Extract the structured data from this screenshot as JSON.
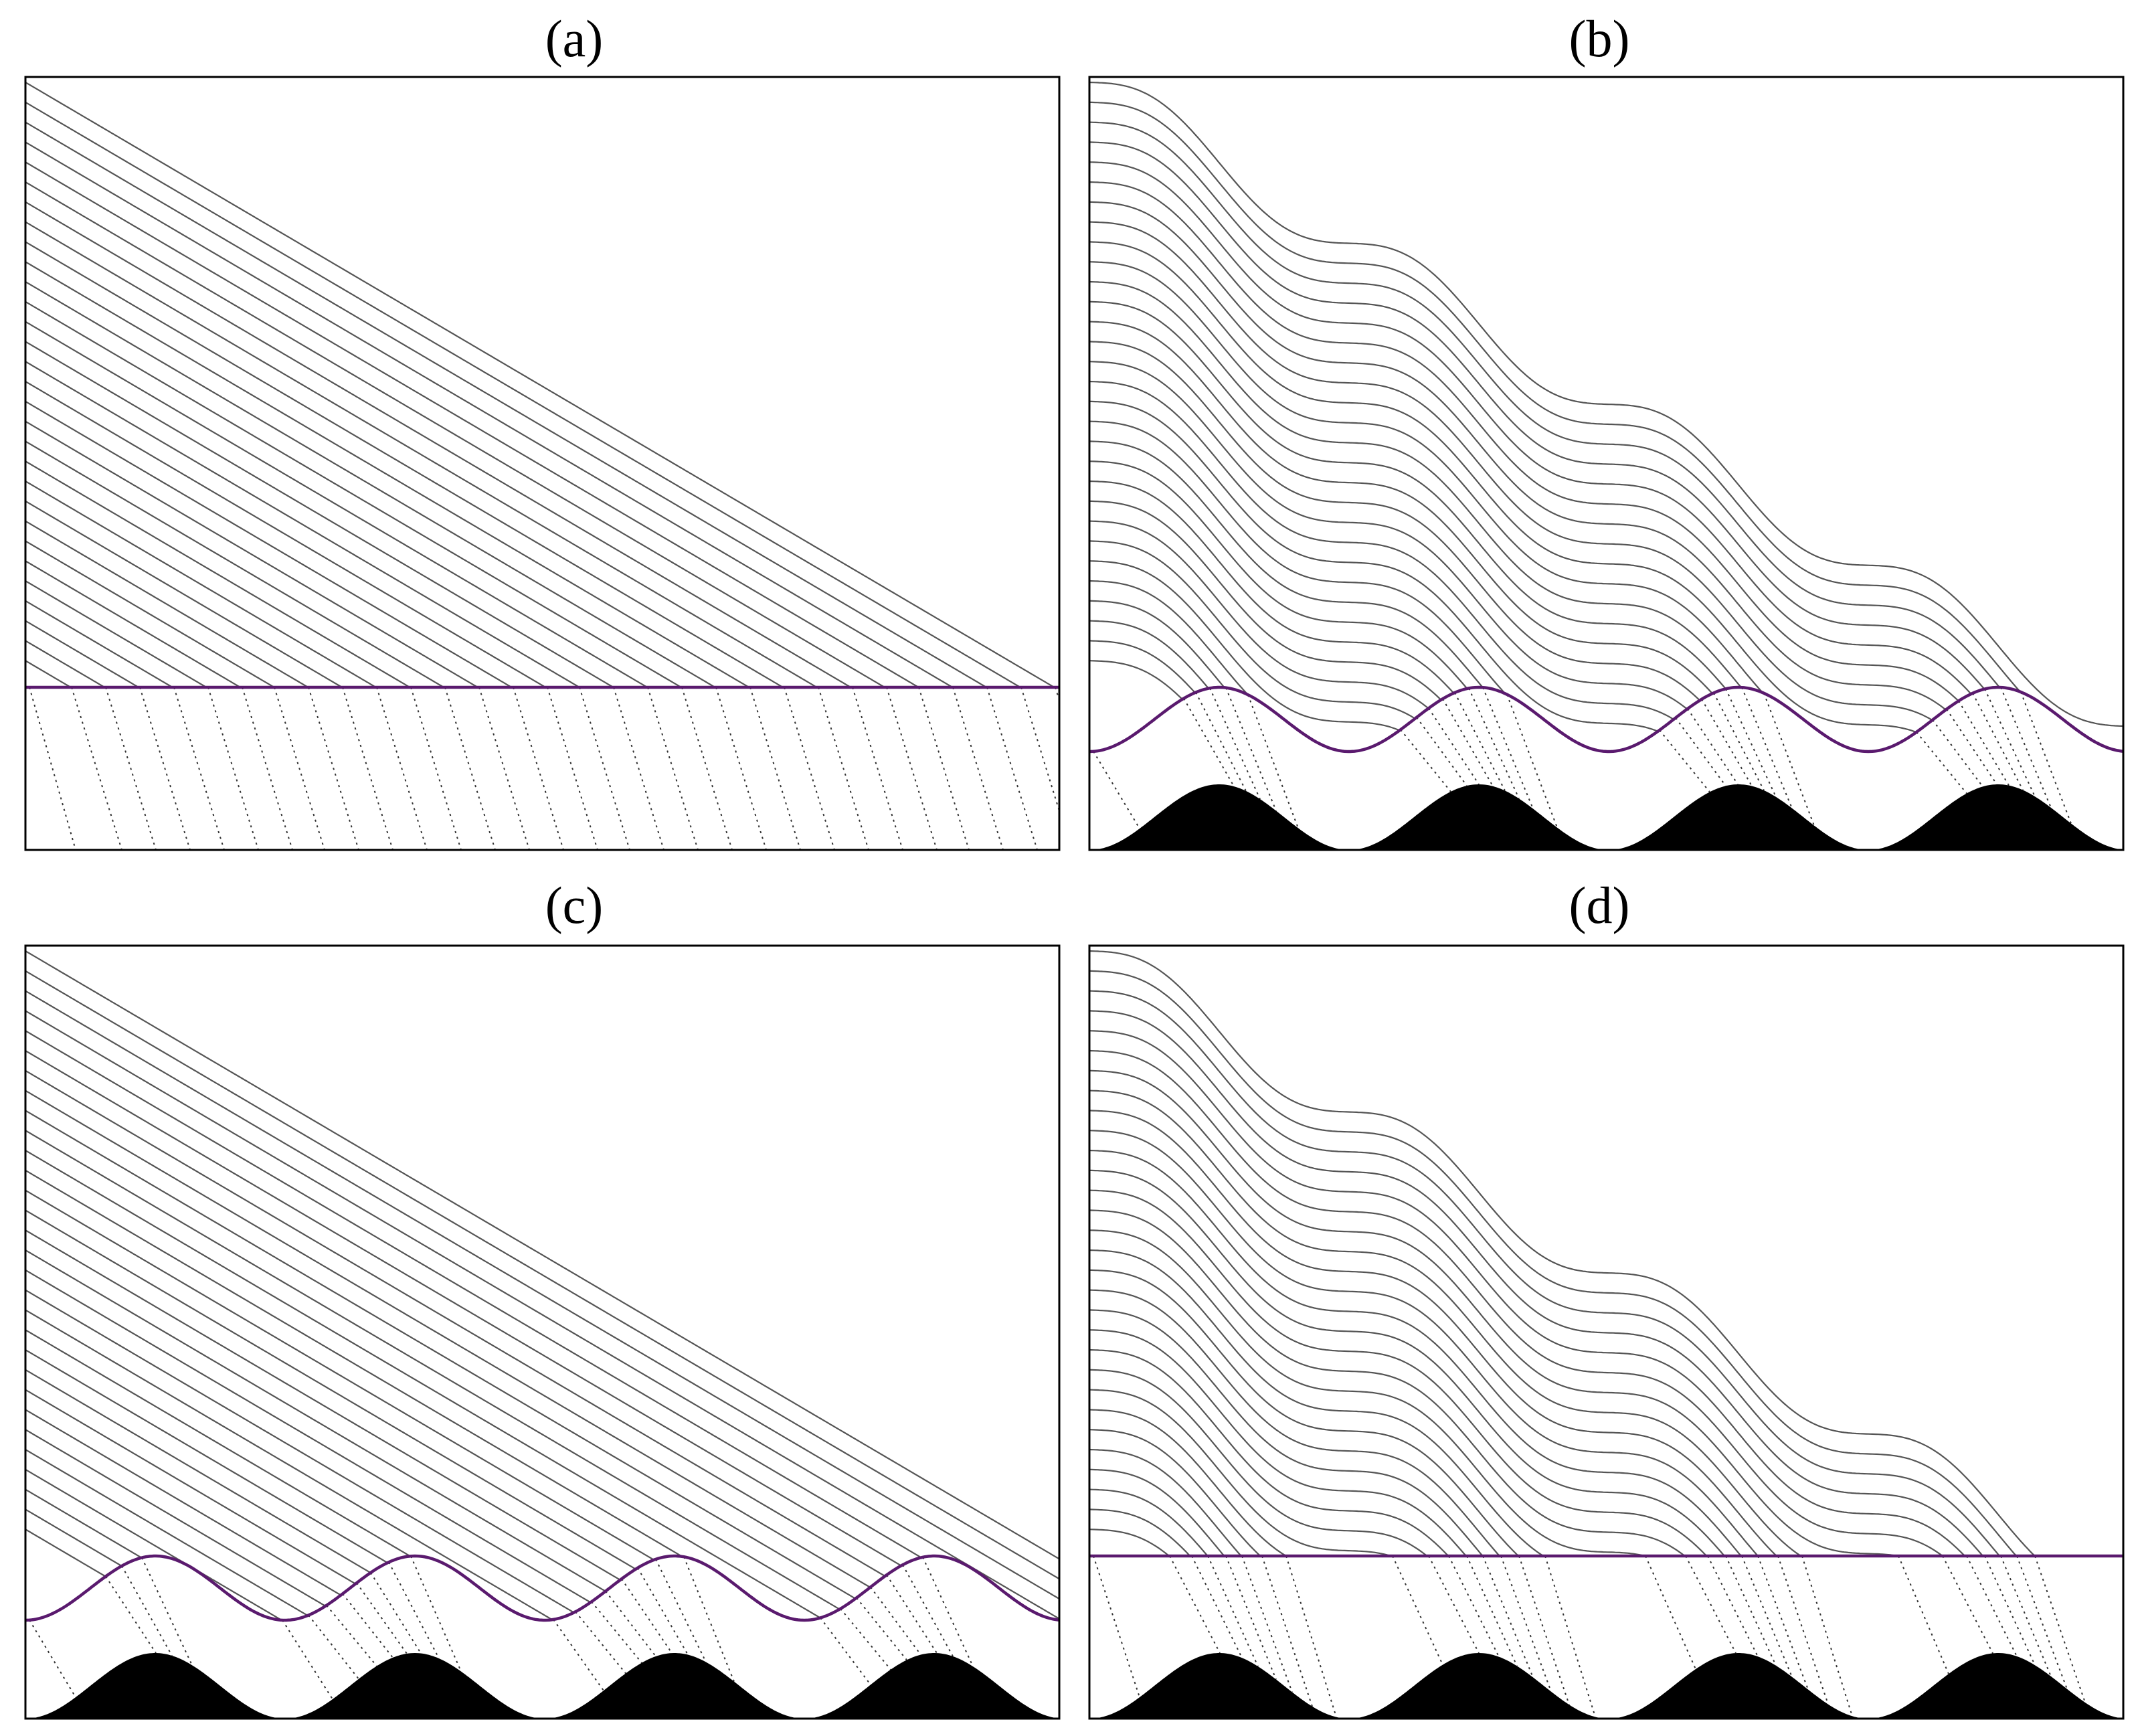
{
  "panels": [
    {
      "id": "a",
      "label": "(a)",
      "interface": "flat",
      "substrate": "flat"
    },
    {
      "id": "b",
      "label": "(b)",
      "interface": "wavy",
      "substrate": "bumps"
    },
    {
      "id": "c",
      "label": "(c)",
      "interface": "wavy",
      "substrate": "bumps"
    },
    {
      "id": "d",
      "label": "(d)",
      "interface": "flat",
      "substrate": "bumps"
    }
  ],
  "colors": {
    "interface": "#5a1a6e",
    "streamlines": "#555555",
    "dotted": "#333333",
    "substrate": "#000000",
    "frame": "#000000"
  }
}
